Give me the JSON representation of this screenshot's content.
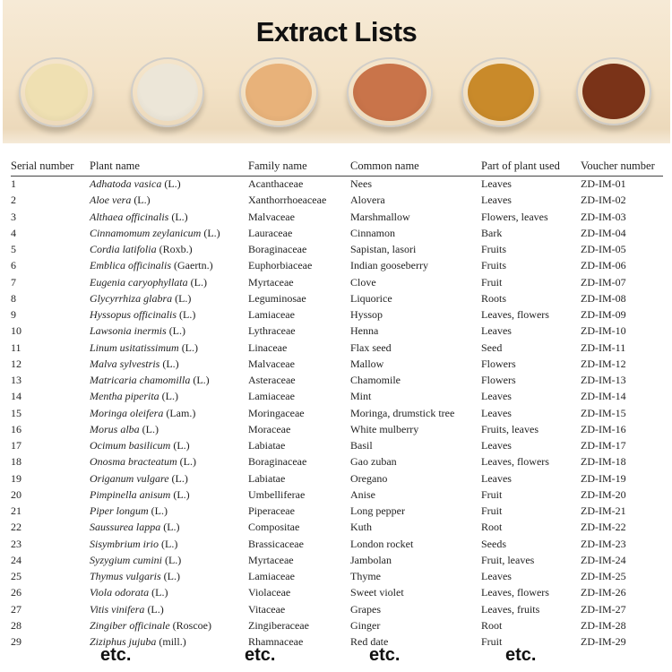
{
  "banner": {
    "title": "Extract Lists",
    "powder_colors": [
      "#efe0b2",
      "#ece6d8",
      "#e8b27a",
      "#c9744a",
      "#c98a2a",
      "#7a3318"
    ]
  },
  "table": {
    "headers": [
      "Serial number",
      "Plant name",
      "Family name",
      "Common name",
      "Part of plant used",
      "Voucher number"
    ],
    "rows": [
      {
        "serial": "1",
        "species": "Adhatoda vasica",
        "authority": "(L.)",
        "family": "Acanthaceae",
        "common": "Nees",
        "part": "Leaves",
        "voucher": "ZD-IM-01"
      },
      {
        "serial": "2",
        "species": "Aloe vera",
        "authority": "(L.)",
        "family": "Xanthorrhoeaceae",
        "common": "Alovera",
        "part": "Leaves",
        "voucher": "ZD-IM-02"
      },
      {
        "serial": "3",
        "species": "Althaea officinalis",
        "authority": "(L.)",
        "family": "Malvaceae",
        "common": "Marshmallow",
        "part": "Flowers, leaves",
        "voucher": "ZD-IM-03"
      },
      {
        "serial": "4",
        "species": "Cinnamomum zeylanicum",
        "authority": "(L.)",
        "family": "Lauraceae",
        "common": "Cinnamon",
        "part": "Bark",
        "voucher": "ZD-IM-04"
      },
      {
        "serial": "5",
        "species": "Cordia latifolia",
        "authority": "(Roxb.)",
        "family": "Boraginaceae",
        "common": "Sapistan, lasori",
        "part": "Fruits",
        "voucher": "ZD-IM-05"
      },
      {
        "serial": "6",
        "species": "Emblica officinalis",
        "authority": "(Gaertn.)",
        "family": "Euphorbiaceae",
        "common": "Indian gooseberry",
        "part": "Fruits",
        "voucher": "ZD-IM-06"
      },
      {
        "serial": "7",
        "species": "Eugenia caryophyllata",
        "authority": "(L.)",
        "family": "Myrtaceae",
        "common": "Clove",
        "part": "Fruit",
        "voucher": "ZD-IM-07"
      },
      {
        "serial": "8",
        "species": "Glycyrrhiza glabra",
        "authority": "(L.)",
        "family": "Leguminosae",
        "common": "Liquorice",
        "part": "Roots",
        "voucher": "ZD-IM-08"
      },
      {
        "serial": "9",
        "species": "Hyssopus officinalis",
        "authority": "(L.)",
        "family": "Lamiaceae",
        "common": "Hyssop",
        "part": "Leaves, flowers",
        "voucher": "ZD-IM-09"
      },
      {
        "serial": "10",
        "species": "Lawsonia inermis",
        "authority": "(L.)",
        "family": "Lythraceae",
        "common": "Henna",
        "part": "Leaves",
        "voucher": "ZD-IM-10"
      },
      {
        "serial": "11",
        "species": "Linum usitatissimum",
        "authority": "(L.)",
        "family": "Linaceae",
        "common": "Flax seed",
        "part": "Seed",
        "voucher": "ZD-IM-11"
      },
      {
        "serial": "12",
        "species": "Malva sylvestris",
        "authority": "(L.)",
        "family": "Malvaceae",
        "common": "Mallow",
        "part": "Flowers",
        "voucher": "ZD-IM-12"
      },
      {
        "serial": "13",
        "species": "Matricaria chamomilla",
        "authority": "(L.)",
        "family": "Asteraceae",
        "common": "Chamomile",
        "part": "Flowers",
        "voucher": "ZD-IM-13"
      },
      {
        "serial": "14",
        "species": "Mentha piperita",
        "authority": "(L.)",
        "family": "Lamiaceae",
        "common": "Mint",
        "part": "Leaves",
        "voucher": "ZD-IM-14"
      },
      {
        "serial": "15",
        "species": "Moringa oleifera",
        "authority": "(Lam.)",
        "family": "Moringaceae",
        "common": "Moringa, drumstick tree",
        "part": "Leaves",
        "voucher": "ZD-IM-15"
      },
      {
        "serial": "16",
        "species": "Morus alba",
        "authority": "(L.)",
        "family": "Moraceae",
        "common": "White mulberry",
        "part": "Fruits, leaves",
        "voucher": "ZD-IM-16"
      },
      {
        "serial": "17",
        "species": "Ocimum basilicum",
        "authority": "(L.)",
        "family": "Labiatae",
        "common": "Basil",
        "part": "Leaves",
        "voucher": "ZD-IM-17"
      },
      {
        "serial": "18",
        "species": "Onosma bracteatum",
        "authority": "(L.)",
        "family": "Boraginaceae",
        "common": "Gao zuban",
        "part": "Leaves, flowers",
        "voucher": "ZD-IM-18"
      },
      {
        "serial": "19",
        "species": "Origanum vulgare",
        "authority": "(L.)",
        "family": "Labiatae",
        "common": "Oregano",
        "part": "Leaves",
        "voucher": "ZD-IM-19"
      },
      {
        "serial": "20",
        "species": "Pimpinella anisum",
        "authority": "(L.)",
        "family": "Umbelliferae",
        "common": "Anise",
        "part": "Fruit",
        "voucher": "ZD-IM-20"
      },
      {
        "serial": "21",
        "species": "Piper longum",
        "authority": "(L.)",
        "family": "Piperaceae",
        "common": "Long pepper",
        "part": "Fruit",
        "voucher": "ZD-IM-21"
      },
      {
        "serial": "22",
        "species": "Saussurea lappa",
        "authority": "(L.)",
        "family": "Compositae",
        "common": "Kuth",
        "part": "Root",
        "voucher": "ZD-IM-22"
      },
      {
        "serial": "23",
        "species": "Sisymbrium irio",
        "authority": "(L.)",
        "family": "Brassicaceae",
        "common": "London rocket",
        "part": "Seeds",
        "voucher": "ZD-IM-23"
      },
      {
        "serial": "24",
        "species": "Syzygium cumini",
        "authority": "(L.)",
        "family": "Myrtaceae",
        "common": "Jambolan",
        "part": "Fruit, leaves",
        "voucher": "ZD-IM-24"
      },
      {
        "serial": "25",
        "species": "Thymus vulgaris",
        "authority": "(L.)",
        "family": "Lamiaceae",
        "common": "Thyme",
        "part": "Leaves",
        "voucher": "ZD-IM-25"
      },
      {
        "serial": "26",
        "species": "Viola odorata",
        "authority": "(L.)",
        "family": "Violaceae",
        "common": "Sweet violet",
        "part": "Leaves, flowers",
        "voucher": "ZD-IM-26"
      },
      {
        "serial": "27",
        "species": "Vitis vinifera",
        "authority": "(L.)",
        "family": "Vitaceae",
        "common": "Grapes",
        "part": "Leaves, fruits",
        "voucher": "ZD-IM-27"
      },
      {
        "serial": "28",
        "species": "Zingiber officinale",
        "authority": "(Roscoe)",
        "family": "Zingiberaceae",
        "common": "Ginger",
        "part": "Root",
        "voucher": "ZD-IM-28"
      },
      {
        "serial": "29",
        "species": "Ziziphus jujuba",
        "authority": "(mill.)",
        "family": "Rhamnaceae",
        "common": "Red date",
        "part": "Fruit",
        "voucher": "ZD-IM-29"
      }
    ],
    "etc_labels": [
      "etc.",
      "etc.",
      "etc.",
      "etc."
    ]
  }
}
